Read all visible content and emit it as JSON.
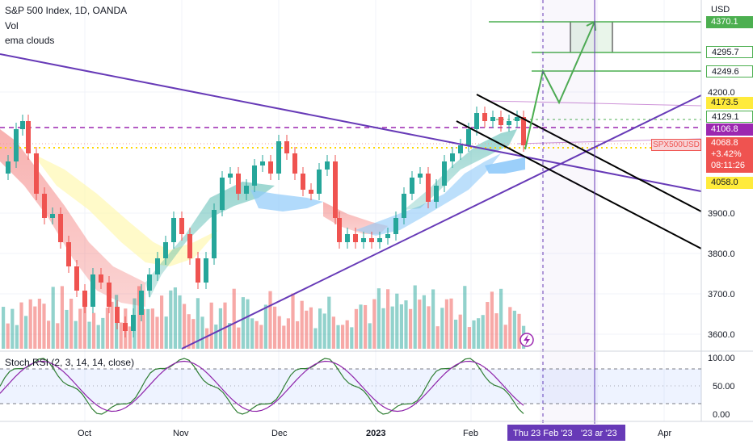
{
  "legend": {
    "symbol_line": "S&P 500 Index, 1D, OANDA",
    "vol": "Vol",
    "ema": "ema clouds",
    "stoch": "Stoch RSI (2, 3, 14, 14, close)"
  },
  "price_axis": {
    "currency": "USD",
    "ticks": [
      "4200.0",
      "3900.0",
      "3800.0",
      "3700.0",
      "3600.0"
    ]
  },
  "stoch_axis": {
    "ticks": [
      "100.00",
      "50.00",
      "0.00"
    ]
  },
  "time_axis": {
    "labels": [
      "Oct",
      "Nov",
      "Dec",
      "2023",
      "Feb",
      "Apr"
    ],
    "highlight_left": "Thu 23 Feb '23",
    "highlight_right": "'23  ar '23"
  },
  "badges": {
    "p4370": "4370.1",
    "p4295": "4295.7",
    "p4249": "4249.6",
    "p4173": "4173.5",
    "p4129": "4129.1",
    "p4106": "4106.8",
    "symbol": "SPX500USD",
    "price": "4068.8",
    "change": "+3.42%",
    "countdown": "08:11:26",
    "p4058": "4058.0"
  },
  "colors": {
    "up": "#26a69a",
    "down": "#ef5350",
    "trendline": "#673ab7",
    "channel": "#000000",
    "projection": "#4caf50",
    "dashed_purple": "#9c27b0",
    "dotted_yellow": "#ffd600",
    "highlight": "#673ab7"
  },
  "icons": [
    "lightning-icon"
  ]
}
